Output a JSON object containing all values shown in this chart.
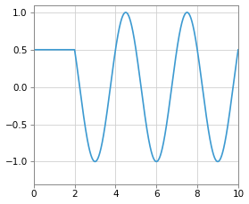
{
  "hold_value": 0.5,
  "hold_start": 0,
  "data_start": 2,
  "x_end": 10,
  "sine_amplitude": 1.0,
  "sine_frequency": 0.3333333333,
  "xlim": [
    0,
    10
  ],
  "ylim": [
    -1.3,
    1.1
  ],
  "xticks": [
    0,
    2,
    4,
    6,
    8,
    10
  ],
  "yticks": [
    -1.0,
    -0.5,
    0.0,
    0.5,
    1.0
  ],
  "line_color": "#3d9ad1",
  "line_width": 1.2,
  "bg_color": "#ffffff",
  "grid_color": "#d0d0d0",
  "tick_label_size": 7.5,
  "figsize": [
    2.79,
    2.29
  ],
  "dpi": 100
}
